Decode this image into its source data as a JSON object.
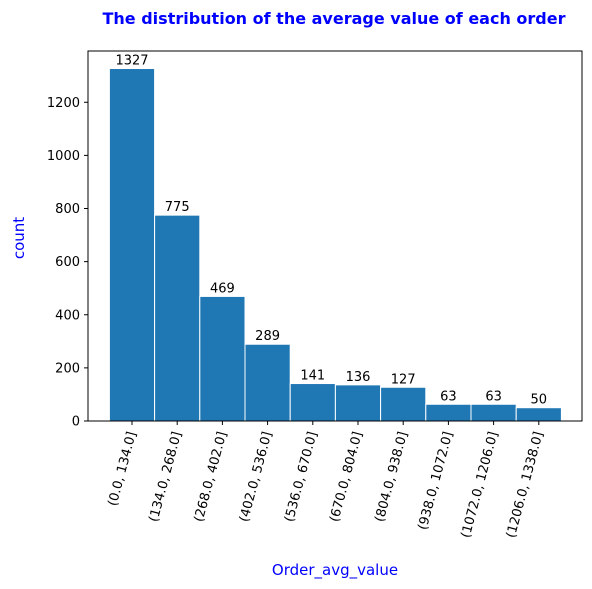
{
  "chart_data": {
    "type": "bar",
    "title": "The distribution of the average value of each order",
    "xlabel": "Order_avg_value",
    "ylabel": "count",
    "categories": [
      "(0.0, 134.0]",
      "(134.0, 268.0]",
      "(268.0, 402.0]",
      "(402.0, 536.0]",
      "(536.0, 670.0]",
      "(670.0, 804.0]",
      "(804.0, 938.0]",
      "(938.0, 1072.0]",
      "(1072.0, 1206.0]",
      "(1206.0, 1338.0]"
    ],
    "values": [
      1327,
      775,
      469,
      289,
      141,
      136,
      127,
      63,
      63,
      50
    ],
    "data_labels": [
      "1327",
      "775",
      "469",
      "289",
      "141",
      "136",
      "127",
      "63",
      "63",
      "50"
    ],
    "ylim": [
      0,
      1393
    ],
    "yticks": [
      0,
      200,
      400,
      600,
      800,
      1000,
      1200
    ],
    "ytick_labels": [
      "0",
      "200",
      "400",
      "600",
      "800",
      "1000",
      "1200"
    ],
    "grid": false,
    "colors": {
      "bar": "#1f77b4",
      "bar_edge": "#ffffff",
      "title": "#0000ff",
      "axis_label": "#0000ff"
    }
  }
}
